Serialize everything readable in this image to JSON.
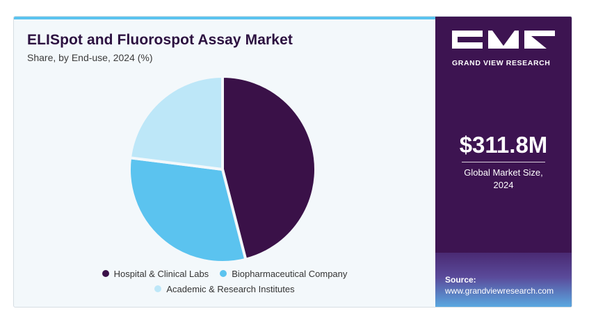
{
  "header": {
    "title": "ELISpot and Fluorospot Assay Market",
    "subtitle": "Share, by End-use, 2024 (%)"
  },
  "chart_data": {
    "type": "pie",
    "title": "ELISpot and Fluorospot Assay Market",
    "subtitle": "Share, by End-use, 2024 (%)",
    "categories": [
      "Hospital & Clinical Labs",
      "Biopharmaceutical Company",
      "Academic & Research Institutes"
    ],
    "values": [
      46,
      31,
      23
    ],
    "colors": [
      "#3a1148",
      "#5bc3ef",
      "#bde7f8"
    ],
    "legend_position": "bottom"
  },
  "sidebar": {
    "brand_name": "GRAND VIEW RESEARCH",
    "market_size": "$311.8M",
    "market_label_line1": "Global Market Size,",
    "market_label_line2": "2024",
    "source_label": "Source:",
    "source_url": "www.grandviewresearch.com",
    "background_color": "#3d1451"
  },
  "icons": {
    "brand": "gvr-logo"
  }
}
